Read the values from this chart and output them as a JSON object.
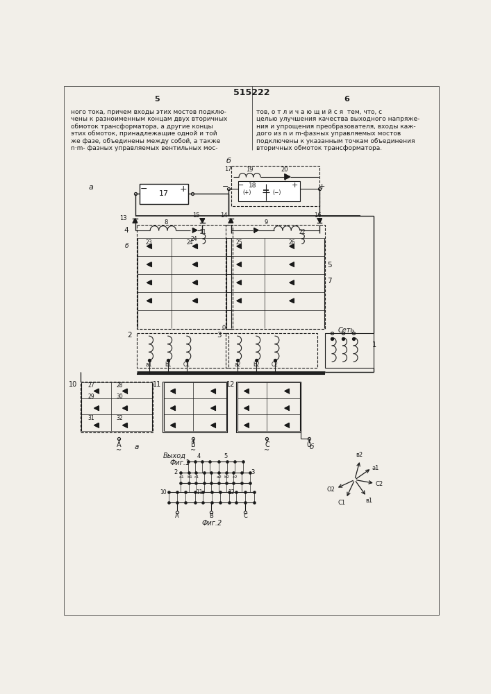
{
  "title": "515222",
  "page_left": "5",
  "page_right": "6",
  "text_left": "ного тока, причем входы этих мостов подклю-\nчены к разноименным концам двух вторичных\nобмоток трансформатора, а другие концы\nэтих обмоток, принадлежащие одной и той\nже фазе, объединены между собой, а также\nn·m- фазных управляемых вентильных мос-",
  "text_right": "тов, о т л и ч а ю щ и й с я  тем, что, с\nцелью улучшения качества выходного напряже-\nния и упрощения преобразователя, входы каж-\nдого из n и m-фазных управляемых мостов\nподключены к указанным точкам объединения\nвторичных обмоток трансформатора.",
  "fig1_label": "Фиг.1",
  "fig2_label": "Фиг.2",
  "bg_color": "#f2efe9",
  "line_color": "#1a1a1a"
}
